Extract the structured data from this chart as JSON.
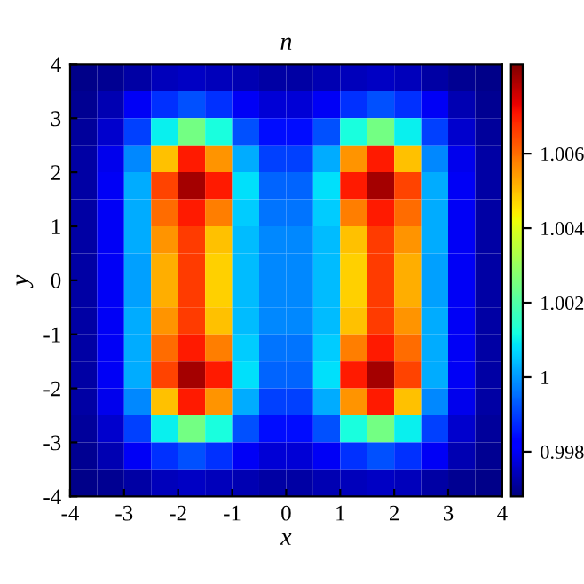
{
  "chart_data": {
    "type": "heatmap",
    "title": "n",
    "xlabel": "x",
    "ylabel": "y",
    "x": [
      -3.75,
      -3.25,
      -2.75,
      -2.25,
      -1.75,
      -1.25,
      -0.75,
      -0.25,
      0.25,
      0.75,
      1.25,
      1.75,
      2.25,
      2.75,
      3.25,
      3.75
    ],
    "y": [
      3.75,
      3.25,
      2.75,
      2.25,
      1.75,
      1.25,
      0.75,
      0.25,
      -0.25,
      -0.75,
      -1.25,
      -1.75,
      -2.25,
      -2.75,
      -3.25,
      -3.75
    ],
    "cells": [
      [
        0.9969,
        0.997,
        0.9972,
        0.9974,
        0.9975,
        0.9974,
        0.9973,
        0.9972,
        0.9972,
        0.9973,
        0.9974,
        0.9975,
        0.9974,
        0.9972,
        0.997,
        0.9969
      ],
      [
        0.997,
        0.9973,
        0.998,
        0.9988,
        0.9992,
        0.9988,
        0.998,
        0.9977,
        0.9977,
        0.998,
        0.9988,
        0.9992,
        0.9988,
        0.998,
        0.9973,
        0.997
      ],
      [
        0.9971,
        0.9976,
        0.999,
        1.001,
        1.0025,
        1.0012,
        0.9992,
        0.9984,
        0.9984,
        0.9992,
        1.0012,
        1.0025,
        1.001,
        0.999,
        0.9976,
        0.9971
      ],
      [
        0.9972,
        0.9979,
        0.9998,
        1.005,
        1.007,
        1.0055,
        1.0002,
        0.999,
        0.999,
        1.0002,
        1.0055,
        1.007,
        1.005,
        0.9998,
        0.9979,
        0.9972
      ],
      [
        0.9972,
        0.998,
        1.0002,
        1.0065,
        1.008,
        1.007,
        1.0008,
        0.9994,
        0.9994,
        1.0008,
        1.007,
        1.008,
        1.0065,
        1.0002,
        0.998,
        0.9972
      ],
      [
        0.9972,
        0.998,
        1.0002,
        1.006,
        1.007,
        1.0058,
        1.0006,
        0.9996,
        0.9996,
        1.0006,
        1.0058,
        1.007,
        1.006,
        1.0002,
        0.998,
        0.9972
      ],
      [
        0.9972,
        0.998,
        1.0002,
        1.0055,
        1.0066,
        1.005,
        1.0004,
        0.9998,
        0.9998,
        1.0004,
        1.005,
        1.0066,
        1.0055,
        1.0002,
        0.998,
        0.9972
      ],
      [
        0.9972,
        0.998,
        1.0001,
        1.0052,
        1.0066,
        1.0048,
        1.0004,
        0.9998,
        0.9998,
        1.0004,
        1.0048,
        1.0066,
        1.0052,
        1.0001,
        0.998,
        0.9972
      ],
      [
        0.9972,
        0.998,
        1.0001,
        1.0052,
        1.0066,
        1.0048,
        1.0004,
        0.9998,
        0.9998,
        1.0004,
        1.0048,
        1.0066,
        1.0052,
        1.0001,
        0.998,
        0.9972
      ],
      [
        0.9972,
        0.998,
        1.0002,
        1.0055,
        1.0066,
        1.005,
        1.0004,
        0.9998,
        0.9998,
        1.0004,
        1.005,
        1.0066,
        1.0055,
        1.0002,
        0.998,
        0.9972
      ],
      [
        0.9972,
        0.998,
        1.0002,
        1.006,
        1.007,
        1.0058,
        1.0006,
        0.9996,
        0.9996,
        1.0006,
        1.0058,
        1.007,
        1.006,
        1.0002,
        0.998,
        0.9972
      ],
      [
        0.9972,
        0.998,
        1.0002,
        1.0065,
        1.008,
        1.007,
        1.0008,
        0.9994,
        0.9994,
        1.0008,
        1.007,
        1.008,
        1.0065,
        1.0002,
        0.998,
        0.9972
      ],
      [
        0.9972,
        0.9979,
        0.9998,
        1.005,
        1.007,
        1.0055,
        1.0002,
        0.999,
        0.999,
        1.0002,
        1.0055,
        1.007,
        1.005,
        0.9998,
        0.9979,
        0.9972
      ],
      [
        0.9971,
        0.9976,
        0.999,
        1.001,
        1.0025,
        1.0012,
        0.9992,
        0.9984,
        0.9984,
        0.9992,
        1.0012,
        1.0025,
        1.001,
        0.999,
        0.9976,
        0.9971
      ],
      [
        0.997,
        0.9973,
        0.998,
        0.9988,
        0.9992,
        0.9988,
        0.998,
        0.9977,
        0.9977,
        0.998,
        0.9988,
        0.9992,
        0.9988,
        0.998,
        0.9973,
        0.997
      ],
      [
        0.9969,
        0.997,
        0.9972,
        0.9974,
        0.9975,
        0.9974,
        0.9973,
        0.9972,
        0.9972,
        0.9973,
        0.9974,
        0.9975,
        0.9974,
        0.9972,
        0.997,
        0.9969
      ]
    ],
    "xlim": [
      -4,
      4
    ],
    "ylim": [
      -4,
      4
    ],
    "xticks": [
      -4,
      -3,
      -2,
      -1,
      0,
      1,
      2,
      3,
      4
    ],
    "yticks": [
      -4,
      -3,
      -2,
      -1,
      0,
      1,
      2,
      3,
      4
    ],
    "clim": [
      0.9968,
      1.0084
    ],
    "cticks": [
      0.998,
      1,
      1.002,
      1.004,
      1.006
    ],
    "grid": false
  }
}
